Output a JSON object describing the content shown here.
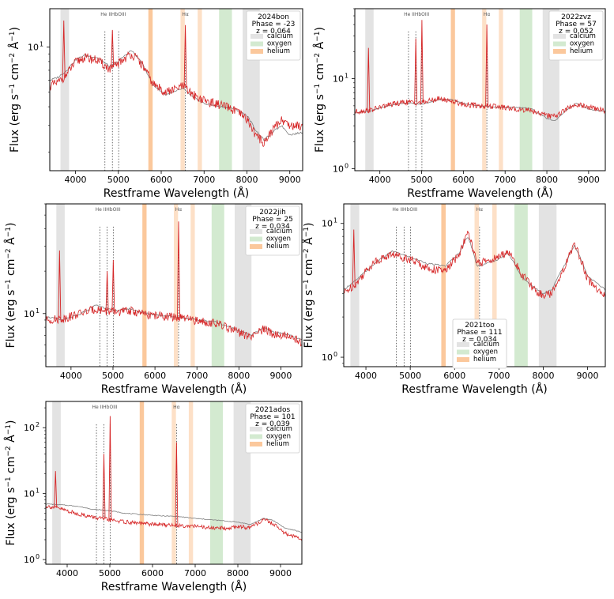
{
  "figure": {
    "xlabel": "Restframe Wavelength (Å)",
    "ylabel_main": "Flux (erg s",
    "ylabel_sup1": "−1",
    "ylabel_mid": " cm",
    "ylabel_sup2": "−2",
    "ylabel_tail": " Å",
    "ylabel_sup3": "−1",
    "ylabel_close": ")"
  },
  "legend_labels": [
    "calcium",
    "oxygen",
    "helium"
  ],
  "band_colors": {
    "calcium": "#e3e3e3",
    "oxygen": "#d3ead0",
    "helium": "#fbc89c",
    "helium_light": "#fde0c7"
  },
  "line_colors": {
    "observed": "#d62728",
    "template": "#7f7f7f"
  },
  "chart_data": [
    {
      "type": "line",
      "name": "2024bon",
      "legend_title": [
        "2024bon",
        "Phase = -23",
        "z = 0.064"
      ],
      "xlim": [
        3400,
        9300
      ],
      "ylim": [
        1.5,
        18
      ],
      "xticks": [
        4000,
        5000,
        6000,
        7000,
        8000,
        9000
      ],
      "yticks": [
        {
          "v": 10,
          "label": "10",
          "exp": "1"
        }
      ],
      "line_labels": [
        {
          "x": 4880,
          "text": "He IIHbOIII"
        },
        {
          "x": 6563,
          "text": "Hα"
        }
      ],
      "dotted_lines": [
        4686,
        4861,
        5007,
        6563
      ],
      "bands": [
        {
          "kind": "calcium",
          "x0": 3650,
          "x1": 3850
        },
        {
          "kind": "helium",
          "x0": 5700,
          "x1": 5800
        },
        {
          "kind": "helium_light",
          "x0": 6450,
          "x1": 6550
        },
        {
          "kind": "helium_light",
          "x0": 6850,
          "x1": 6950
        },
        {
          "kind": "oxygen",
          "x0": 7350,
          "x1": 7650
        },
        {
          "kind": "calcium",
          "x0": 7900,
          "x1": 8300
        }
      ],
      "template": [
        [
          3400,
          6.0
        ],
        [
          3600,
          6.3
        ],
        [
          3800,
          7.0
        ],
        [
          4000,
          8.2
        ],
        [
          4200,
          8.8
        ],
        [
          4500,
          8.5
        ],
        [
          4800,
          7.4
        ],
        [
          5000,
          8.0
        ],
        [
          5300,
          9.5
        ],
        [
          5500,
          8.2
        ],
        [
          5800,
          5.6
        ],
        [
          6100,
          4.8
        ],
        [
          6300,
          5.0
        ],
        [
          6500,
          5.3
        ],
        [
          6700,
          4.7
        ],
        [
          7000,
          4.2
        ],
        [
          7400,
          4.0
        ],
        [
          7700,
          3.9
        ],
        [
          8000,
          3.5
        ],
        [
          8200,
          2.8
        ],
        [
          8400,
          2.4
        ],
        [
          8600,
          2.7
        ],
        [
          8800,
          3.0
        ],
        [
          9000,
          2.6
        ],
        [
          9300,
          2.7
        ]
      ],
      "observed": [
        [
          3400,
          5.5
        ],
        [
          3600,
          5.8
        ],
        [
          3800,
          6.6
        ],
        [
          4000,
          7.9
        ],
        [
          4200,
          8.5
        ],
        [
          4500,
          8.2
        ],
        [
          4800,
          7.1
        ],
        [
          5000,
          7.8
        ],
        [
          5300,
          9.0
        ],
        [
          5500,
          8.0
        ],
        [
          5800,
          5.7
        ],
        [
          6100,
          5.0
        ],
        [
          6300,
          5.2
        ],
        [
          6500,
          5.5
        ],
        [
          6700,
          4.9
        ],
        [
          7000,
          4.4
        ],
        [
          7400,
          4.1
        ],
        [
          7700,
          3.8
        ],
        [
          8000,
          3.3
        ],
        [
          8200,
          2.6
        ],
        [
          8400,
          2.3
        ],
        [
          8600,
          2.8
        ],
        [
          8800,
          3.3
        ],
        [
          9000,
          3.0
        ],
        [
          9300,
          3.0
        ]
      ],
      "spikes": [
        [
          3727,
          15
        ],
        [
          4861,
          13
        ],
        [
          6563,
          14
        ]
      ]
    },
    {
      "type": "line",
      "name": "2022zvz",
      "legend_title": [
        "2022zvz",
        "Phase = 57",
        "z = 0.052"
      ],
      "xlim": [
        3400,
        9400
      ],
      "ylim": [
        0.95,
        60
      ],
      "xticks": [
        4000,
        5000,
        6000,
        7000,
        8000,
        9000
      ],
      "yticks": [
        {
          "v": 1,
          "label": "10",
          "exp": "0"
        },
        {
          "v": 10,
          "label": "10",
          "exp": "1"
        }
      ],
      "line_labels": [
        {
          "x": 4880,
          "text": "He IIHbOIII"
        },
        {
          "x": 6563,
          "text": "Hα"
        }
      ],
      "dotted_lines": [
        4686,
        4861,
        5007,
        6563
      ],
      "bands": [
        {
          "kind": "calcium",
          "x0": 3650,
          "x1": 3850
        },
        {
          "kind": "helium",
          "x0": 5700,
          "x1": 5800
        },
        {
          "kind": "helium_light",
          "x0": 6450,
          "x1": 6550
        },
        {
          "kind": "helium_light",
          "x0": 6850,
          "x1": 6950
        },
        {
          "kind": "oxygen",
          "x0": 7350,
          "x1": 7650
        },
        {
          "kind": "calcium",
          "x0": 7900,
          "x1": 8300
        }
      ],
      "template": [
        [
          3400,
          4.2
        ],
        [
          3800,
          4.4
        ],
        [
          4200,
          5.0
        ],
        [
          4600,
          5.4
        ],
        [
          5000,
          5.2
        ],
        [
          5400,
          5.8
        ],
        [
          5700,
          5.9
        ],
        [
          6000,
          5.3
        ],
        [
          6400,
          5.0
        ],
        [
          6800,
          4.8
        ],
        [
          7200,
          4.8
        ],
        [
          7600,
          4.7
        ],
        [
          8000,
          3.6
        ],
        [
          8200,
          3.4
        ],
        [
          8500,
          4.6
        ],
        [
          8700,
          5.3
        ],
        [
          9000,
          4.6
        ],
        [
          9400,
          4.3
        ]
      ],
      "observed": [
        [
          3400,
          4.3
        ],
        [
          3800,
          4.5
        ],
        [
          4200,
          5.1
        ],
        [
          4600,
          5.5
        ],
        [
          5000,
          5.4
        ],
        [
          5400,
          6.0
        ],
        [
          5700,
          5.7
        ],
        [
          6000,
          5.2
        ],
        [
          6400,
          5.0
        ],
        [
          6800,
          4.9
        ],
        [
          7200,
          4.6
        ],
        [
          7600,
          4.5
        ],
        [
          8000,
          3.9
        ],
        [
          8200,
          3.8
        ],
        [
          8500,
          4.7
        ],
        [
          8700,
          5.2
        ],
        [
          9000,
          4.8
        ],
        [
          9400,
          4.4
        ]
      ],
      "spikes": [
        [
          3727,
          22
        ],
        [
          4861,
          28
        ],
        [
          5007,
          45
        ],
        [
          6563,
          40
        ]
      ]
    },
    {
      "type": "line",
      "name": "2022jih",
      "legend_title": [
        "2022jih",
        "Phase = 25",
        "z = 0.034"
      ],
      "xlim": [
        3400,
        9500
      ],
      "ylim": [
        4.2,
        60
      ],
      "xticks": [
        4000,
        5000,
        6000,
        7000,
        8000,
        9000
      ],
      "yticks": [
        {
          "v": 10,
          "label": "10",
          "exp": "1"
        }
      ],
      "line_labels": [
        {
          "x": 4880,
          "text": "He IIHbOIII"
        },
        {
          "x": 6563,
          "text": "Hα"
        }
      ],
      "dotted_lines": [
        4686,
        4861,
        5007,
        6563
      ],
      "bands": [
        {
          "kind": "calcium",
          "x0": 3650,
          "x1": 3850
        },
        {
          "kind": "helium",
          "x0": 5700,
          "x1": 5800
        },
        {
          "kind": "helium_light",
          "x0": 6450,
          "x1": 6550
        },
        {
          "kind": "helium_light",
          "x0": 6850,
          "x1": 6950
        },
        {
          "kind": "oxygen",
          "x0": 7350,
          "x1": 7650
        },
        {
          "kind": "calcium",
          "x0": 7900,
          "x1": 8300
        }
      ],
      "template": [
        [
          3400,
          9.5
        ],
        [
          3800,
          9.0
        ],
        [
          4200,
          9.8
        ],
        [
          4600,
          11.5
        ],
        [
          5000,
          10.5
        ],
        [
          5400,
          10.8
        ],
        [
          5800,
          10.0
        ],
        [
          6200,
          9.7
        ],
        [
          6600,
          9.4
        ],
        [
          7000,
          9.0
        ],
        [
          7400,
          8.8
        ],
        [
          7800,
          8.0
        ],
        [
          8000,
          7.6
        ],
        [
          8300,
          7.0
        ],
        [
          8600,
          8.0
        ],
        [
          8800,
          7.4
        ],
        [
          9100,
          7.2
        ],
        [
          9500,
          6.5
        ]
      ],
      "observed": [
        [
          3400,
          9.0
        ],
        [
          3800,
          9.2
        ],
        [
          4200,
          10.0
        ],
        [
          4600,
          10.8
        ],
        [
          5000,
          10.2
        ],
        [
          5400,
          10.5
        ],
        [
          5800,
          9.8
        ],
        [
          6200,
          9.6
        ],
        [
          6600,
          9.3
        ],
        [
          7000,
          8.9
        ],
        [
          7400,
          8.6
        ],
        [
          7800,
          7.8
        ],
        [
          8000,
          7.3
        ],
        [
          8300,
          6.8
        ],
        [
          8600,
          7.8
        ],
        [
          8800,
          7.2
        ],
        [
          9100,
          7.0
        ],
        [
          9500,
          6.3
        ]
      ],
      "spikes": [
        [
          3727,
          28
        ],
        [
          4861,
          20
        ],
        [
          5007,
          24
        ],
        [
          6563,
          45
        ]
      ]
    },
    {
      "type": "line",
      "name": "2021too",
      "legend_title": [
        "2021too",
        "Phase = 111",
        "z = 0.034"
      ],
      "xlim": [
        3500,
        9400
      ],
      "ylim": [
        0.85,
        14
      ],
      "xticks": [
        4000,
        5000,
        6000,
        7000,
        8000,
        9000
      ],
      "yticks": [
        {
          "v": 1,
          "label": "10",
          "exp": "0"
        },
        {
          "v": 10,
          "label": "10",
          "exp": "1"
        }
      ],
      "line_labels": [
        {
          "x": 4880,
          "text": "He IIHbOIII"
        },
        {
          "x": 6563,
          "text": "Hα"
        }
      ],
      "dotted_lines": [
        4686,
        4861,
        5007,
        6563
      ],
      "bands": [
        {
          "kind": "calcium",
          "x0": 3650,
          "x1": 3850
        },
        {
          "kind": "helium",
          "x0": 5700,
          "x1": 5800
        },
        {
          "kind": "helium_light",
          "x0": 6450,
          "x1": 6550
        },
        {
          "kind": "helium_light",
          "x0": 6850,
          "x1": 6950
        },
        {
          "kind": "oxygen",
          "x0": 7350,
          "x1": 7650
        },
        {
          "kind": "calcium",
          "x0": 7900,
          "x1": 8300
        }
      ],
      "template": [
        [
          3500,
          3.2
        ],
        [
          3800,
          3.8
        ],
        [
          4200,
          5.0
        ],
        [
          4600,
          6.2
        ],
        [
          5000,
          5.6
        ],
        [
          5400,
          5.0
        ],
        [
          5800,
          4.8
        ],
        [
          6100,
          6.0
        ],
        [
          6300,
          8.0
        ],
        [
          6500,
          4.8
        ],
        [
          6700,
          5.0
        ],
        [
          7000,
          5.4
        ],
        [
          7200,
          6.0
        ],
        [
          7500,
          4.0
        ],
        [
          7800,
          3.3
        ],
        [
          8000,
          3.0
        ],
        [
          8200,
          3.2
        ],
        [
          8500,
          5.0
        ],
        [
          8700,
          6.8
        ],
        [
          9000,
          4.0
        ],
        [
          9400,
          3.2
        ]
      ],
      "observed": [
        [
          3500,
          3.0
        ],
        [
          3800,
          3.6
        ],
        [
          4200,
          5.2
        ],
        [
          4600,
          5.9
        ],
        [
          5000,
          5.4
        ],
        [
          5400,
          4.6
        ],
        [
          5800,
          4.4
        ],
        [
          6100,
          5.8
        ],
        [
          6300,
          8.5
        ],
        [
          6500,
          5.0
        ],
        [
          6700,
          5.2
        ],
        [
          7000,
          5.6
        ],
        [
          7200,
          6.2
        ],
        [
          7500,
          4.2
        ],
        [
          7800,
          3.2
        ],
        [
          8000,
          2.9
        ],
        [
          8200,
          3.0
        ],
        [
          8500,
          4.8
        ],
        [
          8700,
          7.0
        ],
        [
          9000,
          3.8
        ],
        [
          9400,
          2.8
        ]
      ],
      "spikes": [
        [
          3727,
          9
        ]
      ]
    },
    {
      "type": "line",
      "name": "2021ados",
      "legend_title": [
        "2021ados",
        "Phase = 101",
        "z = 0.039"
      ],
      "xlim": [
        3500,
        9500
      ],
      "ylim": [
        0.85,
        250
      ],
      "xticks": [
        4000,
        5000,
        6000,
        7000,
        8000,
        9000
      ],
      "yticks": [
        {
          "v": 1,
          "label": "10",
          "exp": "0"
        },
        {
          "v": 10,
          "label": "10",
          "exp": "1"
        },
        {
          "v": 100,
          "label": "10",
          "exp": "2"
        }
      ],
      "line_labels": [
        {
          "x": 4880,
          "text": "He IIHbOIII"
        },
        {
          "x": 6563,
          "text": "Hα"
        }
      ],
      "dotted_lines": [
        4686,
        4861,
        5007,
        6563
      ],
      "bands": [
        {
          "kind": "calcium",
          "x0": 3650,
          "x1": 3850
        },
        {
          "kind": "helium",
          "x0": 5700,
          "x1": 5800
        },
        {
          "kind": "helium_light",
          "x0": 6450,
          "x1": 6550
        },
        {
          "kind": "helium_light",
          "x0": 6850,
          "x1": 6950
        },
        {
          "kind": "oxygen",
          "x0": 7350,
          "x1": 7650
        },
        {
          "kind": "calcium",
          "x0": 7900,
          "x1": 8300
        }
      ],
      "template": [
        [
          3500,
          7.0
        ],
        [
          3800,
          6.8
        ],
        [
          4200,
          6.5
        ],
        [
          4600,
          5.8
        ],
        [
          5000,
          5.5
        ],
        [
          5400,
          5.0
        ],
        [
          5800,
          4.8
        ],
        [
          6200,
          4.6
        ],
        [
          6600,
          4.5
        ],
        [
          7000,
          4.2
        ],
        [
          7400,
          4.0
        ],
        [
          7800,
          3.8
        ],
        [
          8000,
          3.7
        ],
        [
          8300,
          3.4
        ],
        [
          8600,
          4.2
        ],
        [
          8800,
          4.0
        ],
        [
          9100,
          3.0
        ],
        [
          9500,
          2.6
        ]
      ],
      "observed": [
        [
          3500,
          6.5
        ],
        [
          3800,
          6.0
        ],
        [
          4200,
          5.0
        ],
        [
          4600,
          4.4
        ],
        [
          5000,
          4.0
        ],
        [
          5400,
          3.7
        ],
        [
          5800,
          3.5
        ],
        [
          6200,
          3.4
        ],
        [
          6600,
          3.3
        ],
        [
          7000,
          3.2
        ],
        [
          7400,
          3.0
        ],
        [
          7800,
          3.0
        ],
        [
          8000,
          3.2
        ],
        [
          8300,
          3.0
        ],
        [
          8600,
          4.0
        ],
        [
          8800,
          3.6
        ],
        [
          9100,
          2.5
        ],
        [
          9500,
          2.0
        ]
      ],
      "spikes": [
        [
          3727,
          22
        ],
        [
          4861,
          40
        ],
        [
          5007,
          150
        ],
        [
          6563,
          60
        ]
      ]
    }
  ]
}
